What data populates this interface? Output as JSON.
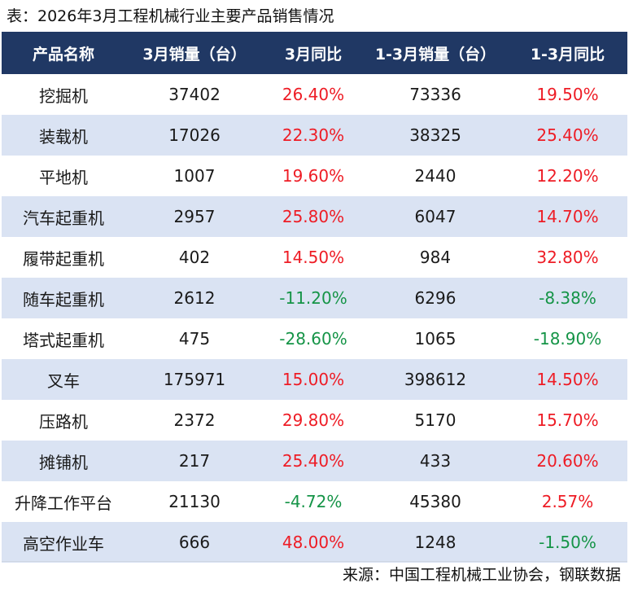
{
  "chart_data": {
    "type": "table",
    "title": "表：2026年3月工程机械行业主要产品销售情况",
    "columns": [
      "产品名称",
      "3月销量（台）",
      "3月同比",
      "1-3月销量（台）",
      "1-3月同比"
    ],
    "rows": [
      [
        "挖掘机",
        "37402",
        "26.40%",
        "73336",
        "19.50%"
      ],
      [
        "装载机",
        "17026",
        "22.30%",
        "38325",
        "25.40%"
      ],
      [
        "平地机",
        "1007",
        "19.60%",
        "2440",
        "12.20%"
      ],
      [
        "汽车起重机",
        "2957",
        "25.80%",
        "6047",
        "14.70%"
      ],
      [
        "履带起重机",
        "402",
        "14.50%",
        "984",
        "32.80%"
      ],
      [
        "随车起重机",
        "2612",
        "-11.20%",
        "6296",
        "-8.38%"
      ],
      [
        "塔式起重机",
        "475",
        "-28.60%",
        "1065",
        "-18.90%"
      ],
      [
        "叉车",
        "175971",
        "15.00%",
        "398612",
        "14.50%"
      ],
      [
        "压路机",
        "2372",
        "29.80%",
        "5170",
        "15.70%"
      ],
      [
        "摊铺机",
        "217",
        "25.40%",
        "433",
        "20.60%"
      ],
      [
        "升降工作平台",
        "21130",
        "-4.72%",
        "45380",
        "2.57%"
      ],
      [
        "高空作业车",
        "666",
        "48.00%",
        "1248",
        "-1.50%"
      ]
    ],
    "source": "来源：中国工程机械工业协会，钢联数据"
  },
  "colors": {
    "header_bg": "#203864",
    "header_text": "#ffffff",
    "alt_row_bg": "#dae3f3",
    "positive": "#ee1c25",
    "negative": "#159447"
  }
}
